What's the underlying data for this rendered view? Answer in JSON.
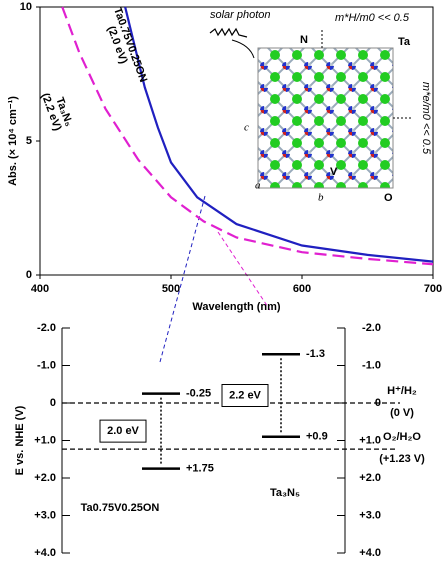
{
  "chart_data": [
    {
      "type": "line",
      "xlabel": "Wavelength (nm)",
      "ylabel": "Abs. (× 10⁴ cm⁻¹)",
      "xlim": [
        400,
        700
      ],
      "xticks": [
        400,
        500,
        600,
        700
      ],
      "ylim": [
        0,
        10
      ],
      "yticks": [
        0,
        5,
        10
      ],
      "series": [
        {
          "name": "Ta0.75V0.25ON",
          "label_sub": "(2.0 eV)",
          "color": "#2020c0",
          "dash": false,
          "x": [
            465,
            470,
            480,
            490,
            500,
            520,
            550,
            600,
            650,
            700
          ],
          "values": [
            10,
            9.0,
            7.0,
            5.5,
            4.2,
            2.9,
            1.9,
            1.1,
            0.75,
            0.5
          ]
        },
        {
          "name": "Ta₃N₅",
          "label_sub": "(2.2 eV)",
          "color": "#e020d0",
          "dash": true,
          "x": [
            417,
            430,
            450,
            475,
            500,
            525,
            550,
            600,
            650,
            700
          ],
          "values": [
            10,
            8.3,
            6.2,
            4.3,
            2.9,
            2.0,
            1.4,
            0.85,
            0.6,
            0.4
          ]
        }
      ],
      "annotations": [
        "solar photon",
        "N",
        "Ta",
        "V",
        "O",
        "a",
        "b",
        "c",
        "m*H/m0 << 0.5",
        "m*e/m0 << 0.5"
      ]
    },
    {
      "type": "band",
      "ylabel": "E vs. NHE (V)",
      "ylim": [
        -2.0,
        4.0
      ],
      "yticks": [
        {
          "value": -2.0,
          "label": "-2.0"
        },
        {
          "value": -1.0,
          "label": "-1.0"
        },
        0,
        {
          "value": 1.0,
          "label": "+1.0"
        },
        {
          "value": 2.0,
          "label": "+2.0"
        },
        {
          "value": 3.0,
          "label": "+3.0"
        },
        {
          "value": 4.0,
          "label": "+4.0"
        }
      ],
      "materials": [
        {
          "name": "Ta0.75V0.25ON",
          "color": "#2020c0",
          "values": [
            -0.25,
            1.75
          ],
          "value_labels": [
            "-0.25",
            "+1.75"
          ],
          "gap_label": "2.0 eV"
        },
        {
          "name": "Ta₃N₅",
          "color": "#e020d0",
          "values": [
            -1.3,
            0.9
          ],
          "value_labels": [
            "-1.3",
            "+0.9"
          ],
          "gap_label": "2.2 eV"
        }
      ],
      "redox": [
        {
          "name": "H⁺/H₂",
          "value": 0,
          "value_label": "(0 V)"
        },
        {
          "name": "O₂/H₂O",
          "value": 1.23,
          "value_label": "(+1.23 V)"
        }
      ]
    }
  ]
}
